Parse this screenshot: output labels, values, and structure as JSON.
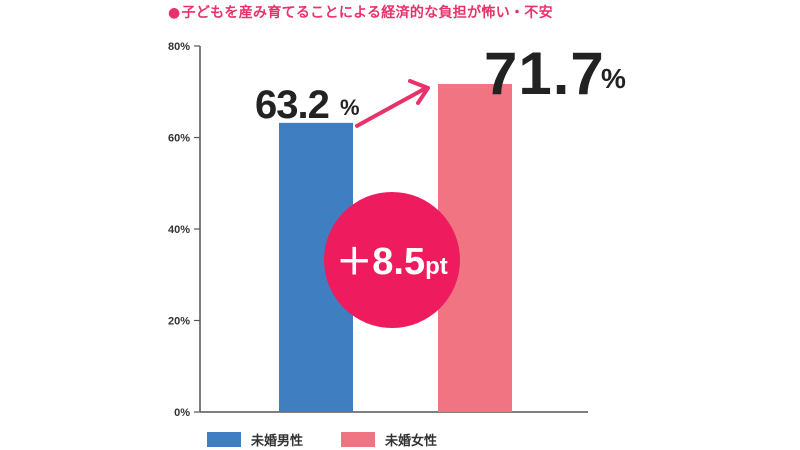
{
  "title": "子どもを産み育てることによる経済的な負担が怖い・不安",
  "title_bullet": "●",
  "colors": {
    "accent": "#e8336a",
    "badge": "#ee1b5f",
    "series_male": "#3f7fc1",
    "series_female": "#f07482"
  },
  "chart_data": {
    "type": "bar",
    "title": "子どもを産み育てることによる経済的な負担が怖い・不安",
    "categories": [
      "未婚男性",
      "未婚女性"
    ],
    "values": [
      63.2,
      71.7
    ],
    "value_labels": [
      "63.2",
      "71.7"
    ],
    "unit": "%",
    "ylim": [
      0,
      80
    ],
    "yticks": [
      0,
      20,
      40,
      60,
      80
    ],
    "ytick_labels": [
      "0%",
      "20%",
      "40%",
      "60%",
      "80%"
    ],
    "legend_position": "bottom",
    "annotation": {
      "prefix": "＋",
      "value": "8.5",
      "unit": "pt"
    },
    "grid": false
  },
  "legend": [
    {
      "label": "未婚男性",
      "color": "#3f7fc1"
    },
    {
      "label": "未婚女性",
      "color": "#f07482"
    }
  ]
}
